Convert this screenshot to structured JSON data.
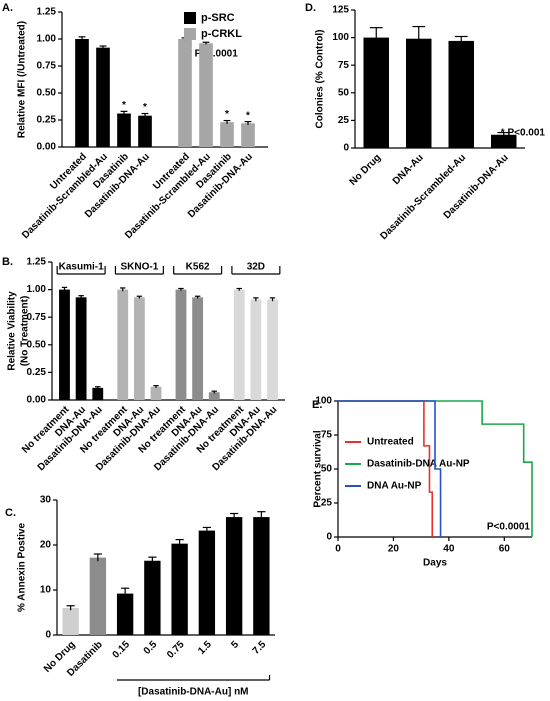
{
  "chart_data": [
    {
      "type": "bar",
      "title": "A.",
      "ylabel": [
        "Relative MFI (/Untreated)"
      ],
      "categories": [
        "Untreated",
        "Dasatinib-Scrambled-Au",
        "Dasatinib",
        "Dasatinib-DNA-Au"
      ],
      "series": [
        {
          "name": "p-SRC",
          "color": "#000000",
          "values": [
            1.0,
            0.92,
            0.31,
            0.29
          ],
          "errors": [
            0.02,
            0.015,
            0.02,
            0.02
          ],
          "markers": [
            null,
            null,
            "*",
            "*"
          ]
        },
        {
          "name": "p-CRKL",
          "color": "#a6a6a6",
          "values": [
            1.0,
            0.96,
            0.23,
            0.22
          ],
          "errors": [
            0.01,
            0.01,
            0.015,
            0.015
          ],
          "markers": [
            null,
            null,
            "*",
            "*"
          ]
        }
      ],
      "ylim": [
        0,
        1.25
      ],
      "yticks": [
        {
          "value": 0,
          "label": "0.00"
        },
        {
          "value": 0.25,
          "label": "0.25"
        },
        {
          "value": 0.5,
          "label": "0.50"
        },
        {
          "value": 0.75,
          "label": "0.75"
        },
        {
          "value": 1,
          "label": "1.00"
        },
        {
          "value": 1.25,
          "label": "1.25"
        }
      ],
      "legend": "upper right",
      "annotation": "* P<0.0001"
    },
    {
      "type": "bar",
      "title": "D.",
      "ylabel": [
        "Colonies (% Control)"
      ],
      "categories": [
        "No Drug",
        "DNA-Au",
        "Dasatinib-Scrambled-Au",
        "Dasatinib-DNA-Au"
      ],
      "values": [
        100,
        99,
        97,
        12
      ],
      "errors": [
        9,
        11,
        4,
        2
      ],
      "color": "#000000",
      "ylim": [
        0,
        125
      ],
      "yticks": [
        0,
        25,
        50,
        75,
        100,
        125
      ],
      "annotation": "* P<0.001"
    },
    {
      "type": "bar",
      "title": "B.",
      "ylabel": [
        "Relative Viability",
        "(No Treatment)"
      ],
      "categories": [
        "No treatment",
        "DNA-Au",
        "Dasatinib-DNA-Au"
      ],
      "series": [
        {
          "name": "Kasumi-1",
          "color": "#000000",
          "values": [
            1.0,
            0.93,
            0.11
          ],
          "errors": [
            0.02,
            0.015,
            0.01
          ]
        },
        {
          "name": "SKNO-1",
          "color": "#b3b3b3",
          "values": [
            1.0,
            0.93,
            0.12
          ],
          "errors": [
            0.015,
            0.01,
            0.01
          ]
        },
        {
          "name": "K562",
          "color": "#8c8c8c",
          "values": [
            1.0,
            0.93,
            0.07
          ],
          "errors": [
            0.01,
            0.01,
            0.01
          ]
        },
        {
          "name": "32D",
          "color": "#d9d9d9",
          "values": [
            1.0,
            0.91,
            0.91
          ],
          "errors": [
            0.01,
            0.015,
            0.015
          ]
        }
      ],
      "ylim": [
        0,
        1.25
      ],
      "yticks": [
        {
          "value": 0,
          "label": "0.00"
        },
        {
          "value": 0.25,
          "label": "0.25"
        },
        {
          "value": 0.5,
          "label": "0.50"
        },
        {
          "value": 0.75,
          "label": "0.75"
        },
        {
          "value": 1,
          "label": "1.00"
        },
        {
          "value": 1.25,
          "label": "1.25"
        }
      ],
      "group_labels": true
    },
    {
      "type": "bar",
      "title": "C.",
      "ylabel": [
        "% Annexin Postive"
      ],
      "categories": [
        "No Drug",
        "Dasatinib",
        "0.15",
        "0.5",
        "0.75",
        "1.5",
        "5",
        "7.5"
      ],
      "values": [
        6,
        17.2,
        9.2,
        16.5,
        20.3,
        23.2,
        26.2,
        26.2
      ],
      "errors": [
        0.5,
        0.8,
        1.2,
        0.8,
        0.9,
        0.7,
        0.8,
        1.2
      ],
      "colors": [
        "#cfcfcf",
        "#8c8c8c",
        "#000000",
        "#000000",
        "#000000",
        "#000000",
        "#000000",
        "#000000"
      ],
      "ylim": [
        0,
        30
      ],
      "yticks": [
        0,
        10,
        20,
        30
      ],
      "bracket": {
        "label": "[Dasatinib-DNA-Au] nM",
        "from": 2,
        "to": 7
      }
    },
    {
      "type": "line",
      "title": "E.",
      "ylabel": [
        "Percent survival"
      ],
      "xlabel": "Days",
      "series": [
        {
          "name": "Untreated",
          "color": "#e8312f",
          "x": [
            0,
            31,
            31,
            33,
            33,
            34,
            34
          ],
          "values": [
            100,
            100,
            67,
            67,
            33,
            33,
            0
          ]
        },
        {
          "name": "Dasatinib-DNA Au-NP",
          "color": "#1aa84a",
          "x": [
            0,
            52,
            52,
            67,
            67,
            70,
            70
          ],
          "values": [
            100,
            100,
            83,
            83,
            55,
            55,
            0
          ]
        },
        {
          "name": "DNA Au-NP",
          "color": "#2a4fc4",
          "x": [
            0,
            35,
            35,
            37,
            37
          ],
          "values": [
            100,
            100,
            50,
            50,
            0
          ]
        }
      ],
      "xlim": [
        0,
        70
      ],
      "xticks": [
        0,
        20,
        40,
        60
      ],
      "ylim": [
        0,
        100
      ],
      "yticks": [
        0,
        25,
        50,
        75,
        100
      ],
      "legend": "center left",
      "annotation": "P<0.0001"
    }
  ]
}
